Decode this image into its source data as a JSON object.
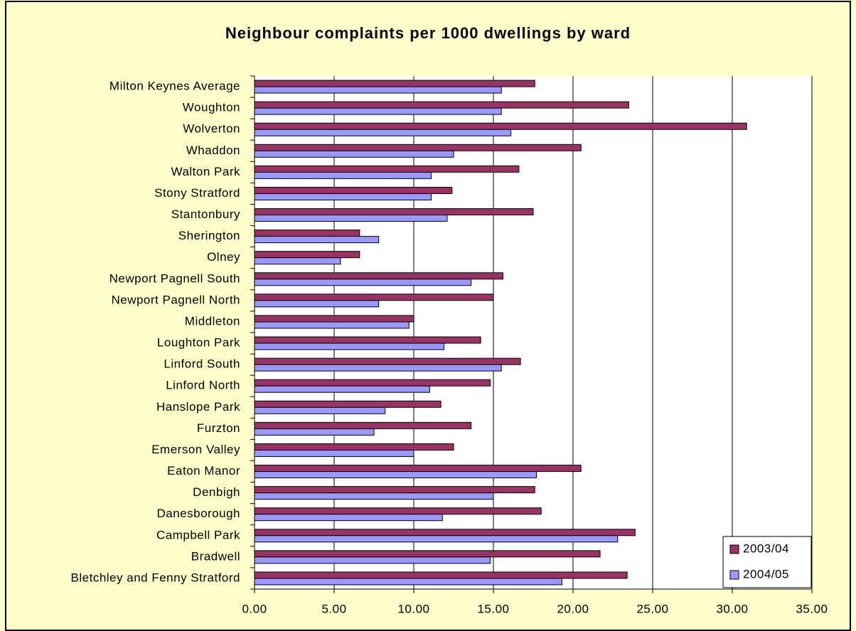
{
  "chart_data": {
    "type": "barh",
    "title": "Neighbour complaints per 1000 dwellings by ward",
    "categories": [
      "Milton Keynes Average",
      "Woughton",
      "Wolverton",
      "Whaddon",
      "Walton Park",
      "Stony Stratford",
      "Stantonbury",
      "Sherington",
      "Olney",
      "Newport Pagnell South",
      "Newport Pagnell North",
      "Middleton",
      "Loughton Park",
      "Linford South",
      "Linford North",
      "Hanslope Park",
      "Furzton",
      "Emerson Valley",
      "Eaton Manor",
      "Denbigh",
      "Danesborough",
      "Campbell Park",
      "Bradwell",
      "Bletchley and Fenny Stratford"
    ],
    "series": [
      {
        "name": "2003/04",
        "color": "#993366",
        "values": [
          17.6,
          23.5,
          30.9,
          20.5,
          16.6,
          12.4,
          17.5,
          6.6,
          6.6,
          15.6,
          15.0,
          10.0,
          14.2,
          16.7,
          14.8,
          11.7,
          13.6,
          12.5,
          20.5,
          17.6,
          18.0,
          23.9,
          21.7,
          23.4
        ]
      },
      {
        "name": "2004/05",
        "color": "#9999ff",
        "values": [
          15.5,
          15.5,
          16.1,
          12.5,
          11.1,
          11.1,
          12.1,
          7.8,
          5.4,
          13.6,
          7.8,
          9.7,
          11.9,
          15.5,
          11.0,
          8.2,
          7.5,
          10.0,
          17.7,
          15.0,
          11.8,
          22.8,
          14.8,
          19.3
        ]
      }
    ],
    "xlim": [
      0,
      35
    ],
    "xticks": [
      {
        "value": 0,
        "label": "0.00"
      },
      {
        "value": 5,
        "label": "5.00"
      },
      {
        "value": 10,
        "label": "10.00"
      },
      {
        "value": 15,
        "label": "15.00"
      },
      {
        "value": 20,
        "label": "20.00"
      },
      {
        "value": 25,
        "label": "25.00"
      },
      {
        "value": 30,
        "label": "30.00"
      },
      {
        "value": 35,
        "label": "35.00"
      }
    ],
    "grid": true,
    "legend": "bottom-right"
  }
}
